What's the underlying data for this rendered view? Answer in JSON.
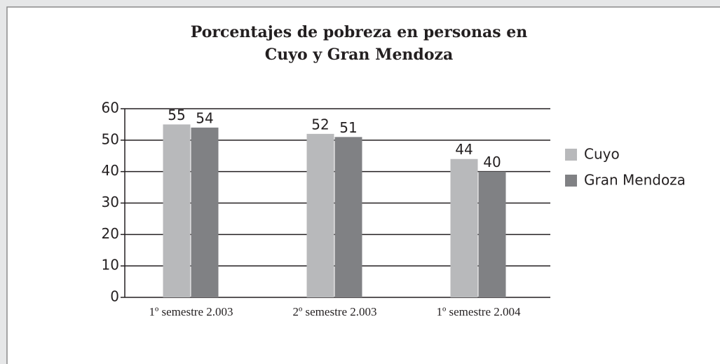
{
  "chart_data": {
    "type": "bar",
    "title": [
      "Porcentajes de pobreza en personas en",
      "Cuyo y Gran Mendoza"
    ],
    "categories": [
      "1º semestre 2.003",
      "2º semestre 2.003",
      "1º semestre 2.004"
    ],
    "series": [
      {
        "name": "Cuyo",
        "color": "#b8b9bb",
        "values": [
          55,
          52,
          44
        ]
      },
      {
        "name": "Gran Mendoza",
        "color": "#808184",
        "values": [
          54,
          51,
          40
        ]
      }
    ],
    "ylim": [
      0,
      60
    ],
    "yticks": [
      0,
      10,
      20,
      30,
      40,
      50,
      60
    ],
    "grid": true,
    "legend": "right"
  }
}
